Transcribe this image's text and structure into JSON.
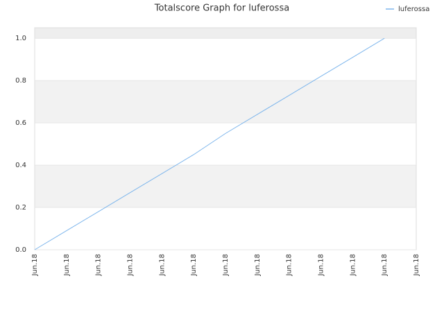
{
  "chart_data": {
    "type": "line",
    "title": "Totalscore Graph for luferossa",
    "categories": [
      "Jun.18",
      "Jun.18",
      "Jun.18",
      "Jun.18",
      "Jun.18",
      "Jun.18",
      "Jun.18",
      "Jun.18",
      "Jun.18",
      "Jun.18",
      "Jun.18",
      "Jun.18",
      "Jun.18"
    ],
    "series": [
      {
        "name": "luferossa",
        "color": "#7cb5ec",
        "values": [
          0,
          0.09,
          0.18,
          0.27,
          0.36,
          0.45,
          0.55,
          0.64,
          0.73,
          0.82,
          0.91,
          1,
          null
        ]
      }
    ],
    "ylim": [
      0,
      1.05
    ],
    "yticks": [
      {
        "value": 0,
        "label": "0.0"
      },
      0.2,
      0.4,
      0.6,
      0.8,
      {
        "value": 1,
        "label": "1.0"
      }
    ],
    "grid": true,
    "legend": "top-right"
  }
}
